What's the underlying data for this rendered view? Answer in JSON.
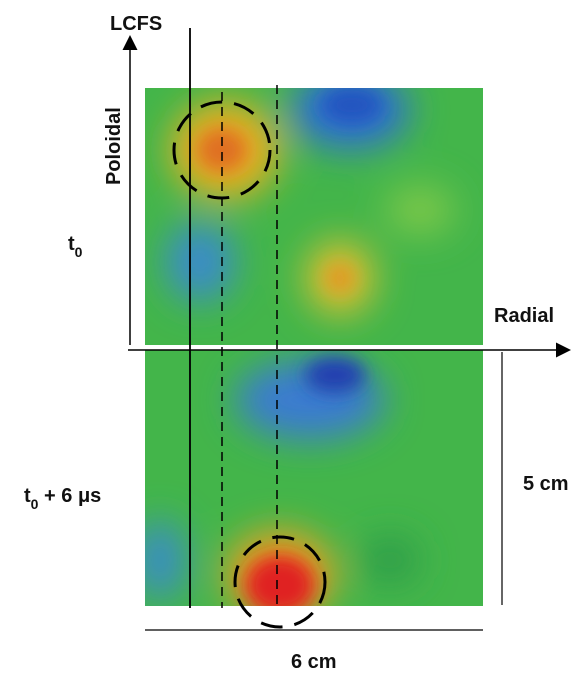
{
  "labels": {
    "lcfs": "LCFS",
    "poloidal": "Poloidal",
    "radial": "Radial",
    "top_time": {
      "text": "t",
      "subscript": "0"
    },
    "bottom_time": {
      "text": "t",
      "subscript": "0",
      "suffix": " + 6 μs"
    },
    "height_scale": "5 cm",
    "width_scale": "6 cm"
  }
}
